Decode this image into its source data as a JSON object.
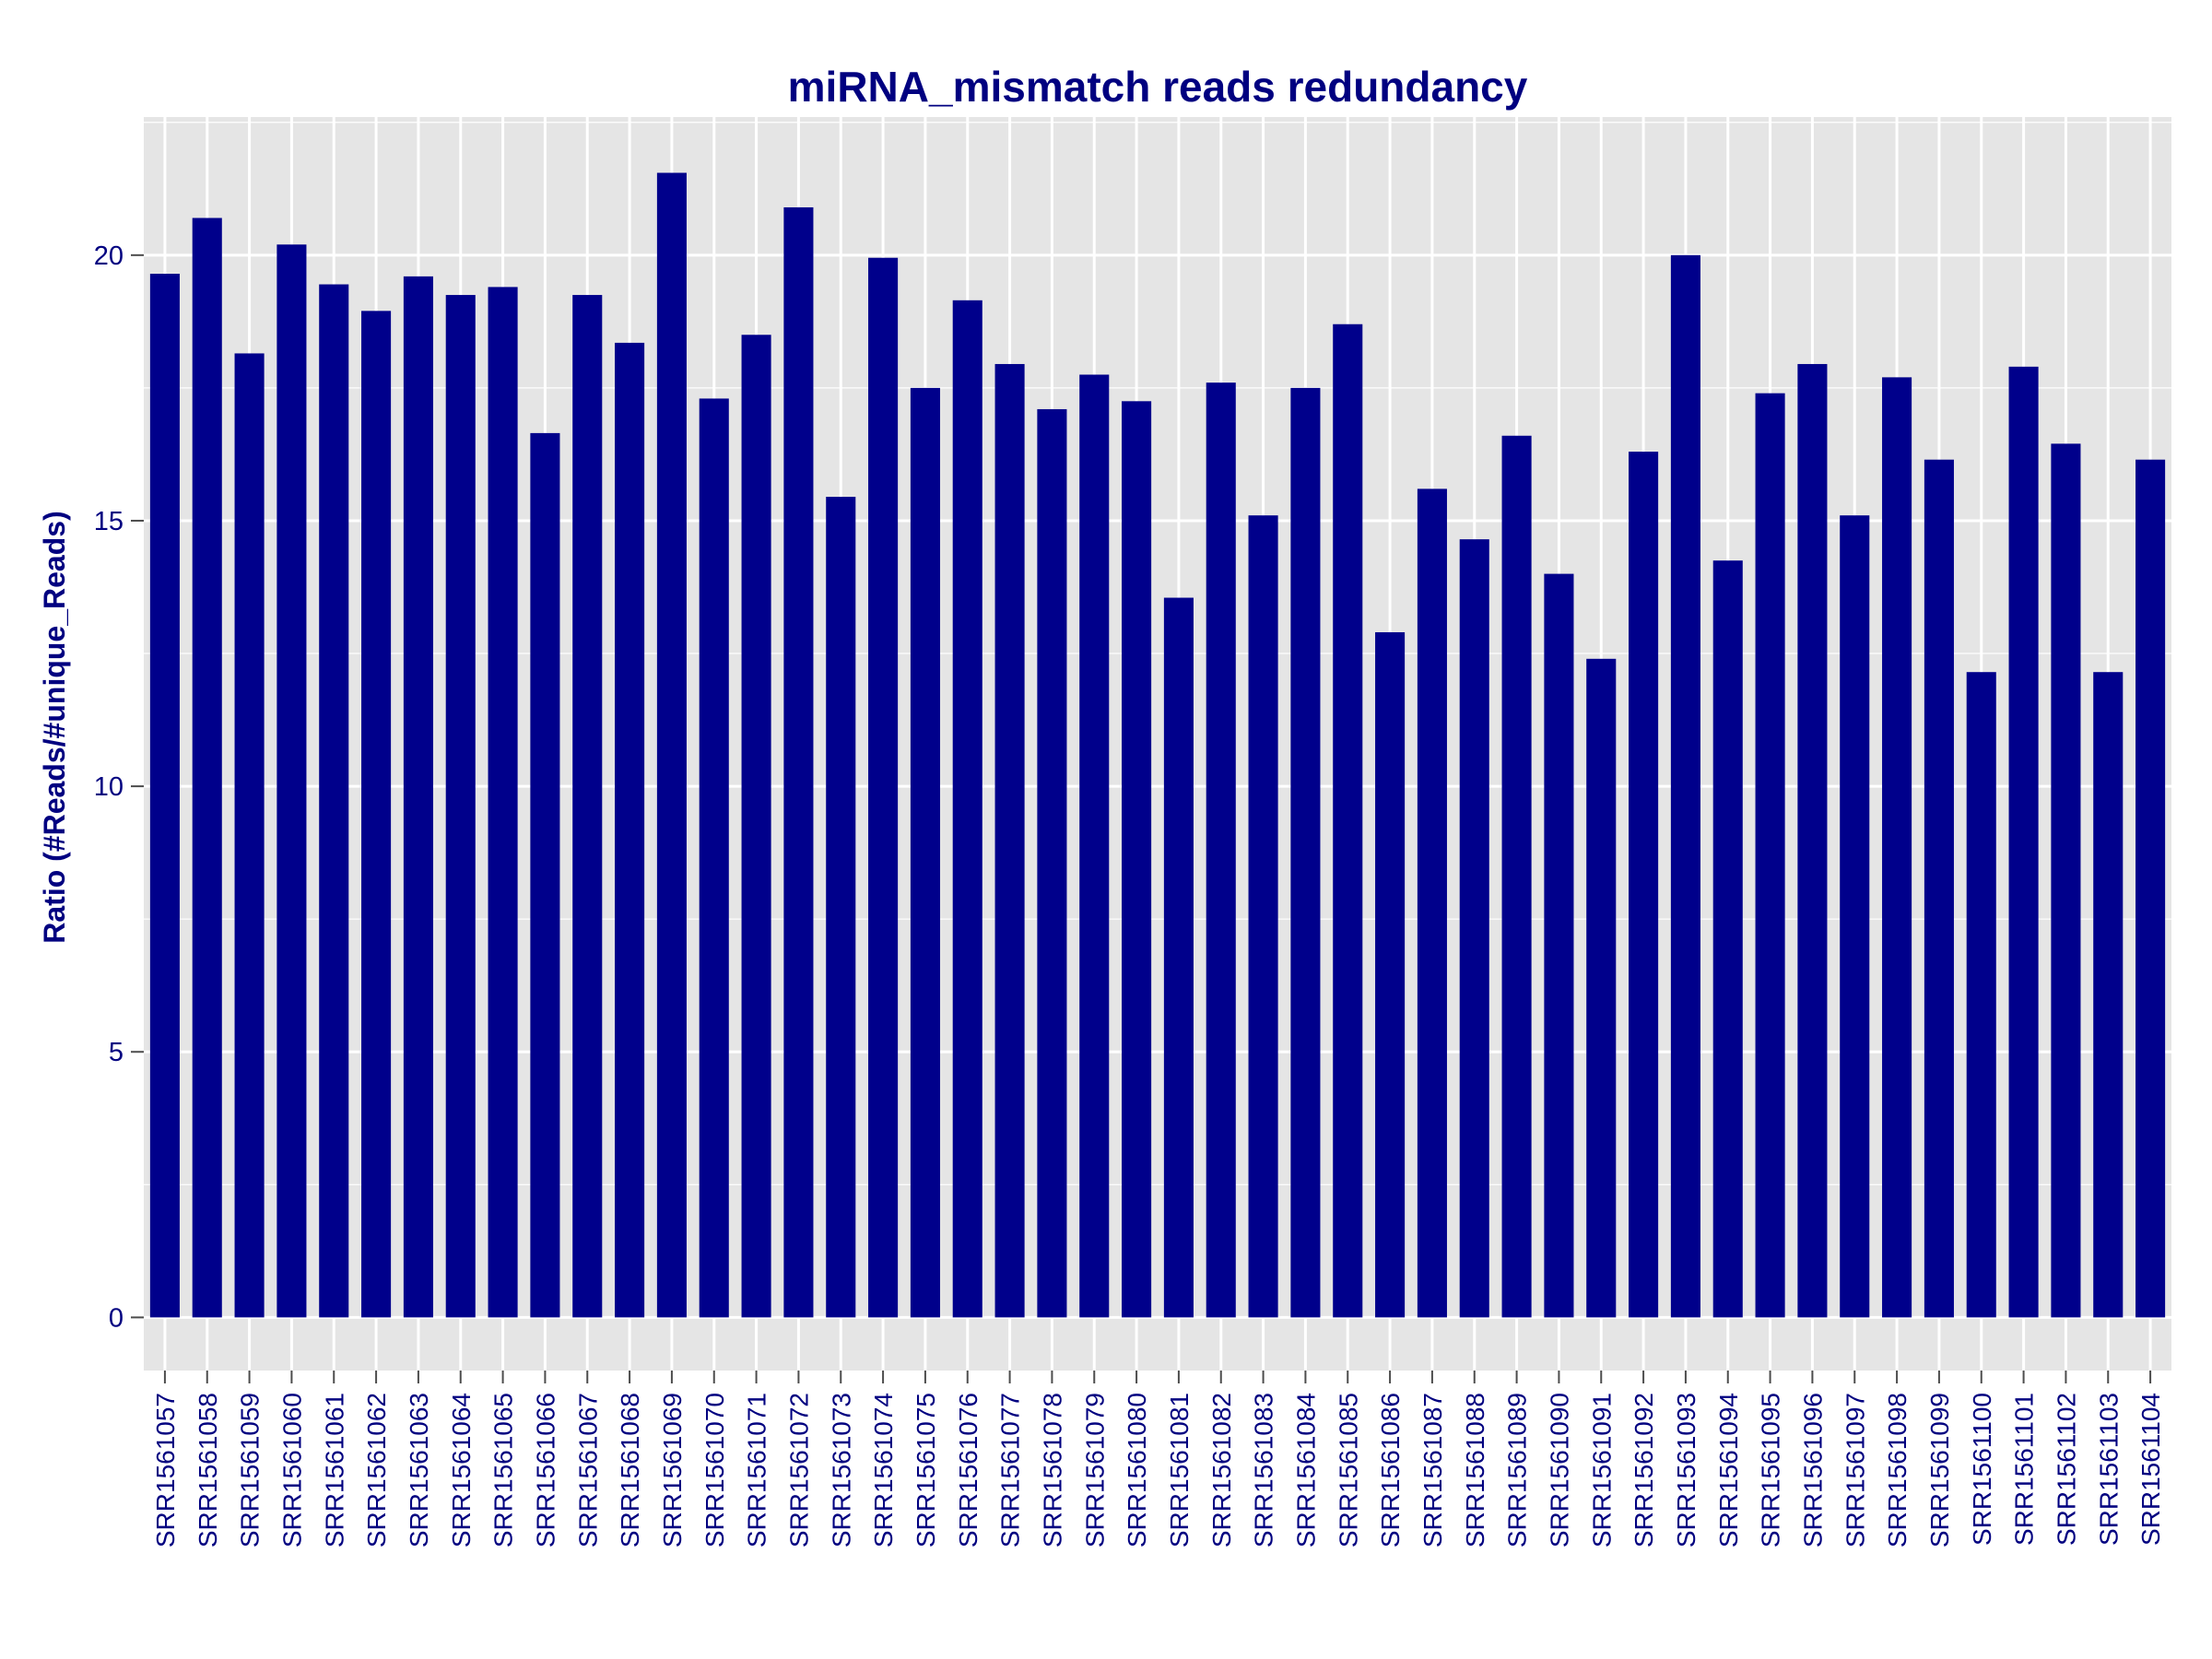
{
  "chart_data": {
    "type": "bar",
    "title": "miRNA_mismatch reads redundancy",
    "xlabel": "",
    "ylabel": "Ratio (#Reads/#unique_Reads)",
    "ylim": [
      -1,
      22.6
    ],
    "yticks": [
      0,
      5,
      10,
      15,
      20
    ],
    "ytick_labels": [
      "0",
      "5",
      "10",
      "15",
      "20"
    ],
    "grid": true,
    "legend": "none",
    "bar_color": "#00008B",
    "panel_color": "#E5E5E5",
    "grid_color": "#FFFFFF",
    "text_color": "#000080",
    "categories": [
      "SRR1561057",
      "SRR1561058",
      "SRR1561059",
      "SRR1561060",
      "SRR1561061",
      "SRR1561062",
      "SRR1561063",
      "SRR1561064",
      "SRR1561065",
      "SRR1561066",
      "SRR1561067",
      "SRR1561068",
      "SRR1561069",
      "SRR1561070",
      "SRR1561071",
      "SRR1561072",
      "SRR1561073",
      "SRR1561074",
      "SRR1561075",
      "SRR1561076",
      "SRR1561077",
      "SRR1561078",
      "SRR1561079",
      "SRR1561080",
      "SRR1561081",
      "SRR1561082",
      "SRR1561083",
      "SRR1561084",
      "SRR1561085",
      "SRR1561086",
      "SRR1561087",
      "SRR1561088",
      "SRR1561089",
      "SRR1561090",
      "SRR1561091",
      "SRR1561092",
      "SRR1561093",
      "SRR1561094",
      "SRR1561095",
      "SRR1561096",
      "SRR1561097",
      "SRR1561098",
      "SRR1561099",
      "SRR1561100",
      "SRR1561101",
      "SRR1561102",
      "SRR1561103",
      "SRR1561104"
    ],
    "values": [
      19.65,
      20.7,
      18.15,
      20.2,
      19.45,
      18.95,
      19.6,
      19.25,
      19.4,
      16.65,
      19.25,
      18.35,
      21.55,
      17.3,
      18.5,
      20.9,
      15.45,
      19.95,
      17.5,
      19.15,
      17.95,
      17.1,
      17.75,
      17.25,
      13.55,
      17.6,
      15.1,
      17.5,
      18.7,
      12.9,
      15.6,
      14.65,
      16.6,
      14.0,
      12.4,
      16.3,
      20.0,
      14.25,
      17.4,
      17.95,
      15.1,
      17.7,
      16.15,
      12.15,
      17.9,
      16.45,
      12.15,
      16.15
    ]
  }
}
